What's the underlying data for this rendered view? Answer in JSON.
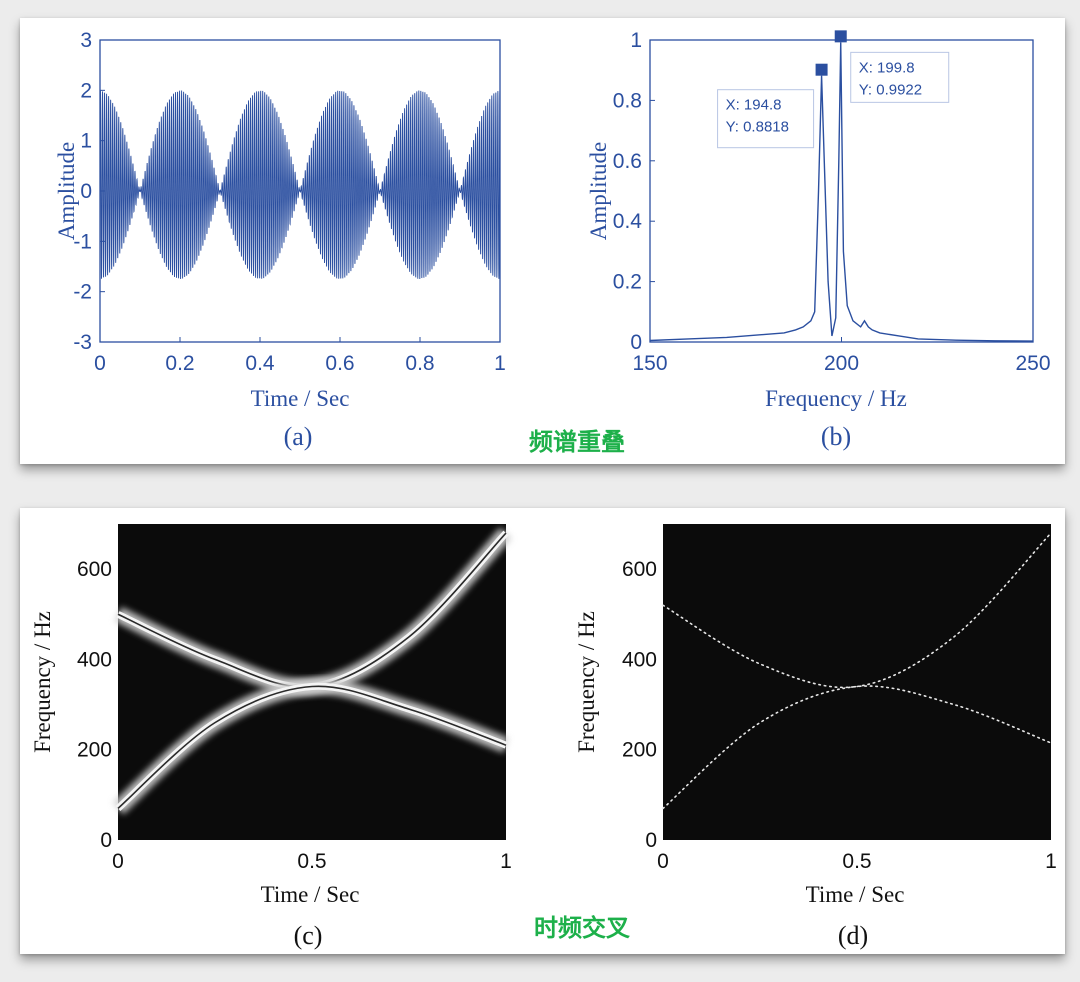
{
  "top_caption": "频谱重叠",
  "bottom_caption": "时频交叉",
  "colors": {
    "matlab_blue": "#2b4fa0",
    "caption_green": "#1db04a",
    "tf_background": "#0b0b0b"
  },
  "chart_data": [
    {
      "id": "a",
      "panel_label": "(a)",
      "type": "line",
      "xlabel": "Time / Sec",
      "ylabel": "Amplitude",
      "xlim": [
        0,
        1
      ],
      "ylim": [
        -3,
        3
      ],
      "xticks": [
        "0",
        "0.2",
        "0.4",
        "0.6",
        "0.8",
        "1"
      ],
      "yticks": [
        "3",
        "2",
        "1",
        "0",
        "-1",
        "-2",
        "-3"
      ],
      "signal": {
        "carrier_hz": 197.3,
        "envelope_beat_hz": 5,
        "upper_peak": 2.0,
        "lower_peak": -1.75
      }
    },
    {
      "id": "b",
      "panel_label": "(b)",
      "type": "line",
      "xlabel": "Frequency / Hz",
      "ylabel": "Amplitude",
      "xlim": [
        150,
        250
      ],
      "ylim": [
        0,
        1
      ],
      "xticks": [
        "150",
        "200",
        "250"
      ],
      "yticks": [
        "1",
        "0.8",
        "0.6",
        "0.4",
        "0.2",
        "0"
      ],
      "x": [
        150,
        160,
        170,
        180,
        185,
        188,
        190,
        192,
        193,
        194,
        194.8,
        195.5,
        196.5,
        197.5,
        198.5,
        199.3,
        199.8,
        200.5,
        201.5,
        203,
        205,
        206,
        207,
        208,
        210,
        215,
        220,
        230,
        240,
        250
      ],
      "y": [
        0.005,
        0.01,
        0.015,
        0.025,
        0.03,
        0.04,
        0.05,
        0.07,
        0.1,
        0.5,
        0.8818,
        0.6,
        0.2,
        0.02,
        0.08,
        0.6,
        0.9922,
        0.3,
        0.12,
        0.07,
        0.05,
        0.07,
        0.05,
        0.04,
        0.03,
        0.02,
        0.01,
        0.006,
        0.004,
        0.003
      ],
      "datatips": [
        {
          "x": 194.8,
          "y": 0.8818,
          "x_text": "X: 194.8",
          "y_text": "Y: 0.8818"
        },
        {
          "x": 199.8,
          "y": 0.9922,
          "x_text": "X: 199.8",
          "y_text": "Y: 0.9922"
        }
      ]
    },
    {
      "id": "c",
      "panel_label": "(c)",
      "type": "heatmap",
      "xlabel": "Time / Sec",
      "ylabel": "Frequency / Hz",
      "xlim": [
        0,
        1
      ],
      "ylim": [
        0,
        700
      ],
      "xticks": [
        "0",
        "0.5",
        "1"
      ],
      "yticks": [
        "600",
        "400",
        "200",
        "0"
      ],
      "curves": [
        {
          "t": [
            0,
            0.25,
            0.5,
            0.75,
            1
          ],
          "f": [
            500,
            400,
            340,
            450,
            680
          ]
        },
        {
          "t": [
            0,
            0.25,
            0.5,
            0.75,
            1
          ],
          "f": [
            70,
            260,
            340,
            290,
            210
          ]
        }
      ]
    },
    {
      "id": "d",
      "panel_label": "(d)",
      "type": "heatmap",
      "xlabel": "Time / Sec",
      "ylabel": "Frequency / Hz",
      "xlim": [
        0,
        1
      ],
      "ylim": [
        0,
        700
      ],
      "xticks": [
        "0",
        "0.5",
        "1"
      ],
      "yticks": [
        "600",
        "400",
        "200",
        "0"
      ],
      "curves": [
        {
          "t": [
            0,
            0.25,
            0.5,
            0.75,
            1
          ],
          "f": [
            520,
            390,
            340,
            450,
            680
          ]
        },
        {
          "t": [
            0,
            0.25,
            0.5,
            0.75,
            1
          ],
          "f": [
            70,
            260,
            340,
            300,
            215
          ]
        }
      ]
    }
  ]
}
